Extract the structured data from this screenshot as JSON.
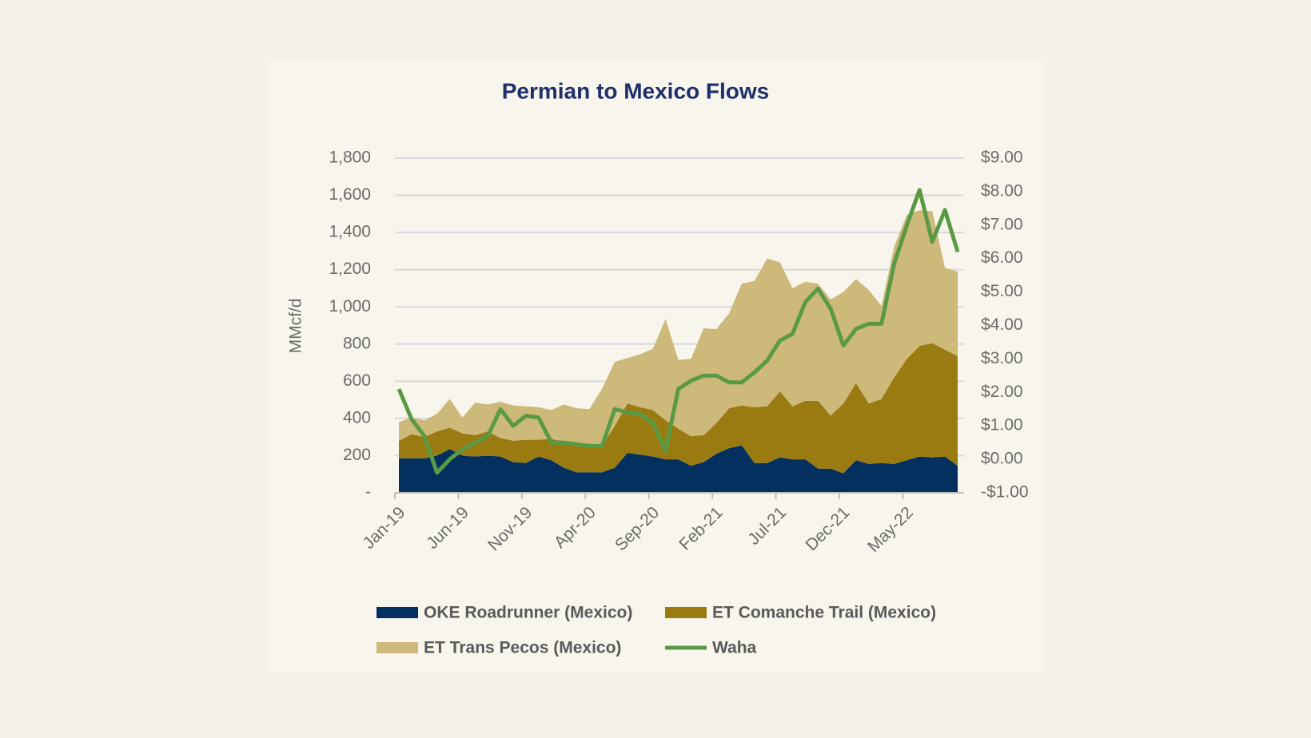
{
  "chart_data": {
    "type": "stacked_area_line",
    "title": "Permian to Mexico Flows",
    "y_label": "MMcf/d",
    "categories": [
      "Jan-19",
      null,
      null,
      null,
      null,
      "Jun-19",
      null,
      null,
      null,
      null,
      "Nov-19",
      null,
      null,
      null,
      null,
      "Apr-20",
      null,
      null,
      null,
      null,
      "Sep-20",
      null,
      null,
      null,
      null,
      "Feb-21",
      null,
      null,
      null,
      null,
      "Jul-21",
      null,
      null,
      null,
      null,
      "Dec-21",
      null,
      null,
      null,
      null,
      "May-22",
      null,
      null,
      null,
      null
    ],
    "ylim": [
      0,
      1800
    ],
    "yticks": [
      {
        "value": 0,
        "label": "-"
      },
      200,
      400,
      600,
      800,
      {
        "value": 1000,
        "label": "1,000"
      },
      {
        "value": 1200,
        "label": "1,200"
      },
      {
        "value": 1400,
        "label": "1,400"
      },
      {
        "value": 1600,
        "label": "1,600"
      },
      {
        "value": 1800,
        "label": "1,800"
      }
    ],
    "y2lim": [
      -1,
      9
    ],
    "y2ticks": [
      {
        "value": -1,
        "label": "-$1.00"
      },
      {
        "value": 0,
        "label": "$0.00"
      },
      {
        "value": 1,
        "label": "$1.00"
      },
      {
        "value": 2,
        "label": "$2.00"
      },
      {
        "value": 3,
        "label": "$3.00"
      },
      {
        "value": 4,
        "label": "$4.00"
      },
      {
        "value": 5,
        "label": "$5.00"
      },
      {
        "value": 6,
        "label": "$6.00"
      },
      {
        "value": 7,
        "label": "$7.00"
      },
      {
        "value": 8,
        "label": "$8.00"
      },
      {
        "value": 9,
        "label": "$9.00"
      }
    ],
    "grid": true,
    "series": [
      {
        "name": "OKE Roadrunner (Mexico)",
        "color": "#03305f",
        "kind": "area",
        "values": [
          185,
          185,
          185,
          200,
          235,
          200,
          195,
          200,
          195,
          165,
          160,
          195,
          175,
          135,
          110,
          110,
          110,
          135,
          215,
          205,
          195,
          180,
          180,
          145,
          165,
          210,
          240,
          255,
          160,
          160,
          190,
          180,
          180,
          130,
          130,
          105,
          175,
          155,
          160,
          155,
          175,
          195,
          190,
          195,
          145
        ]
      },
      {
        "name": "ET Comanche Trail (Mexico)",
        "color": "#9a7b12",
        "kind": "area",
        "values": [
          95,
          130,
          115,
          130,
          115,
          120,
          115,
          130,
          100,
          115,
          125,
          90,
          115,
          140,
          155,
          155,
          145,
          225,
          265,
          255,
          250,
          210,
          165,
          160,
          145,
          165,
          215,
          215,
          300,
          305,
          355,
          285,
          315,
          365,
          285,
          375,
          415,
          325,
          345,
          465,
          545,
          595,
          615,
          575,
          590
        ]
      },
      {
        "name": "ET Trans Pecos (Mexico)",
        "color": "#cdb97a",
        "kind": "area",
        "values": [
          100,
          90,
          90,
          95,
          155,
          85,
          175,
          145,
          195,
          190,
          180,
          175,
          155,
          200,
          190,
          185,
          305,
          345,
          245,
          285,
          330,
          545,
          370,
          415,
          575,
          505,
          510,
          655,
          680,
          795,
          695,
          635,
          640,
          630,
          625,
          600,
          560,
          610,
          500,
          705,
          775,
          730,
          710,
          440,
          455
        ]
      },
      {
        "name": "Waha",
        "color": "#5a9a45",
        "kind": "line",
        "axis": "y2",
        "values": [
          2.1,
          1.2,
          0.7,
          -0.4,
          0.0,
          0.3,
          0.5,
          0.7,
          1.5,
          1.0,
          1.3,
          1.25,
          0.5,
          0.5,
          0.45,
          0.4,
          0.4,
          1.5,
          1.4,
          1.35,
          1.1,
          0.25,
          2.1,
          2.35,
          2.5,
          2.5,
          2.3,
          2.3,
          2.6,
          2.95,
          3.55,
          3.75,
          4.7,
          5.1,
          4.5,
          3.4,
          3.9,
          4.05,
          4.05,
          5.85,
          7.0,
          8.05,
          6.5,
          7.45,
          6.2
        ]
      }
    ]
  }
}
